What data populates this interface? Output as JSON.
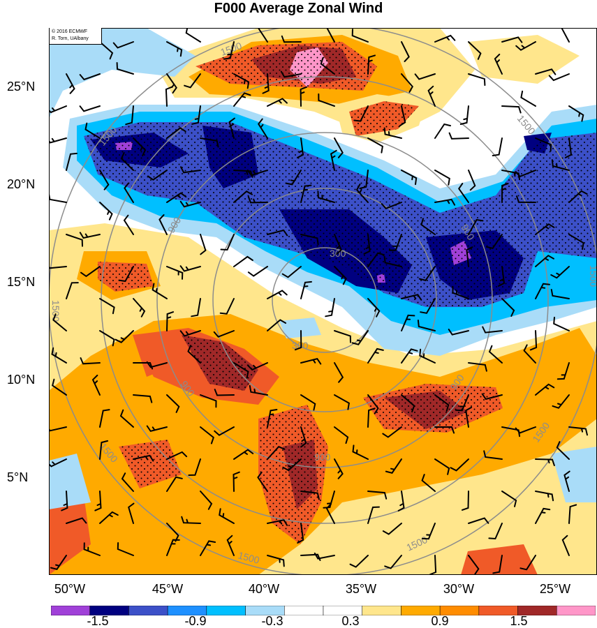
{
  "title": "F000 Average Zonal Wind",
  "credit": {
    "line1": "© 2016 ECMWF",
    "line2": "R. Torn, UAlbany"
  },
  "lat_labels": [
    "25°N",
    "20°N",
    "15°N",
    "10°N",
    "5°N"
  ],
  "lon_labels": [
    "50°W",
    "45°W",
    "40°W",
    "35°W",
    "30°W",
    "25°W"
  ],
  "circle_labels": [
    "300",
    "900",
    "1500"
  ],
  "colorbar": {
    "colors": [
      "#a040d8",
      "#000080",
      "#3c50c8",
      "#1e90ff",
      "#00bfff",
      "#a9dcf8",
      "#ffffff",
      "#ffffff",
      "#ffe68c",
      "#ffaa00",
      "#ff8c00",
      "#f05a28",
      "#a02828",
      "#ff96c8"
    ],
    "labels": [
      "-1.5",
      "-0.9",
      "-0.3",
      "0.3",
      "0.9",
      "1.5"
    ]
  }
}
